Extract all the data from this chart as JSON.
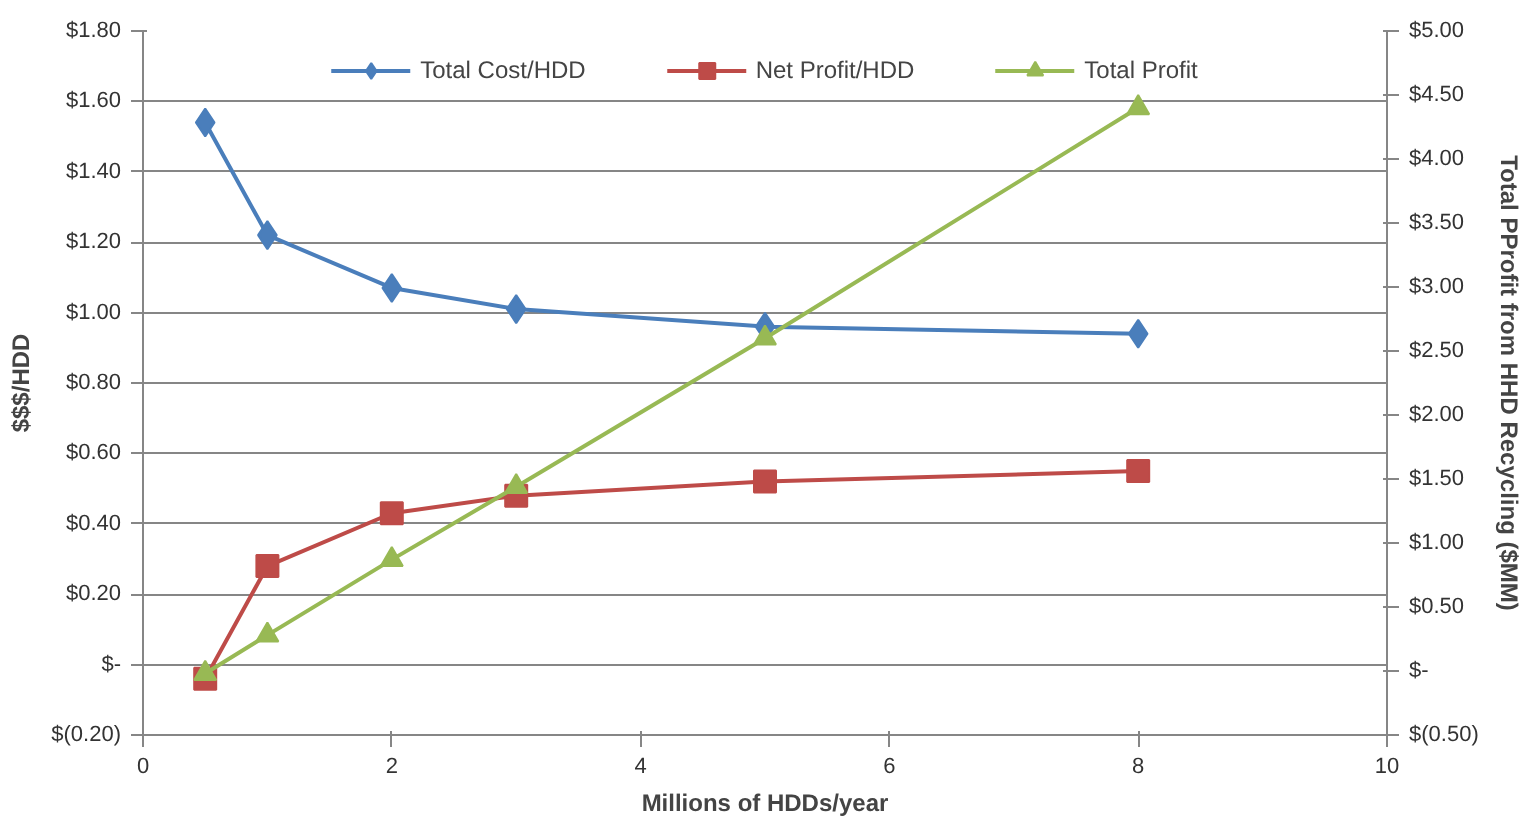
{
  "chart_data": {
    "type": "line",
    "xlabel": "Millions of HDDs/year",
    "ylabel": "$$$/HDD",
    "y2label": "Total PProfit from HHD Recycling ($MM)",
    "x": [
      0.5,
      1,
      2,
      3,
      5,
      8
    ],
    "series": [
      {
        "name": "Total Cost/HDD",
        "color": "#4a7ebb",
        "marker": "diamond",
        "values": [
          1.54,
          1.22,
          1.07,
          1.01,
          0.96,
          0.94
        ]
      },
      {
        "name": "Net Profit/HDD",
        "color": "#be4b48",
        "marker": "square",
        "values": [
          -0.04,
          0.28,
          0.43,
          0.48,
          0.52,
          0.55
        ]
      },
      {
        "name": "Total Profit",
        "color": "#98b954",
        "marker": "triangle",
        "axis": "y2",
        "values": [
          -0.02,
          0.28,
          0.87,
          1.44,
          2.6,
          4.4
        ]
      }
    ],
    "xlim": [
      0,
      10
    ],
    "xticks": [
      0,
      2,
      4,
      6,
      8,
      10
    ],
    "ylim": [
      -0.2,
      1.8
    ],
    "yticks": [
      {
        "value": -0.2,
        "label": "$(0.20)"
      },
      {
        "value": 0,
        "label": "$-"
      },
      {
        "value": 0.2,
        "label": "$0.20"
      },
      {
        "value": 0.4,
        "label": "$0.40"
      },
      {
        "value": 0.6,
        "label": "$0.60"
      },
      {
        "value": 0.8,
        "label": "$0.80"
      },
      {
        "value": 1.0,
        "label": "$1.00"
      },
      {
        "value": 1.2,
        "label": "$1.20"
      },
      {
        "value": 1.4,
        "label": "$1.40"
      },
      {
        "value": 1.6,
        "label": "$1.60"
      },
      {
        "value": 1.8,
        "label": "$1.80"
      }
    ],
    "y2lim": [
      -0.5,
      5.0
    ],
    "y2ticks": [
      {
        "value": -0.5,
        "label": "$(0.50)"
      },
      {
        "value": 0,
        "label": "$-"
      },
      {
        "value": 0.5,
        "label": "$0.50"
      },
      {
        "value": 1.0,
        "label": "$1.00"
      },
      {
        "value": 1.5,
        "label": "$1.50"
      },
      {
        "value": 2.0,
        "label": "$2.00"
      },
      {
        "value": 2.5,
        "label": "$2.50"
      },
      {
        "value": 3.0,
        "label": "$3.00"
      },
      {
        "value": 3.5,
        "label": "$3.50"
      },
      {
        "value": 4.0,
        "label": "$4.00"
      },
      {
        "value": 4.5,
        "label": "$4.50"
      },
      {
        "value": 5.0,
        "label": "$5.00"
      }
    ],
    "grid": "y",
    "legend": "top",
    "line_style": "solid"
  }
}
